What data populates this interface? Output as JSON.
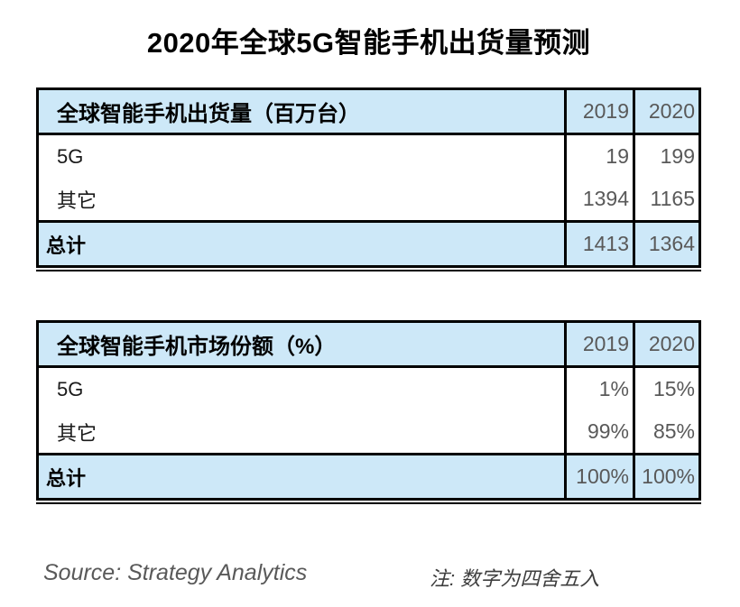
{
  "page": {
    "title": "2020年全球5G智能手机出货量预测",
    "source_text": "Source: Strategy Analytics",
    "note_text": "注: 数字为四舍五入"
  },
  "colors": {
    "header_band_blue": "#cde8f8",
    "table_border": "#000000",
    "numeral_gray": "#595959",
    "label_black": "#000000"
  },
  "chart_data": [
    {
      "type": "table",
      "title": "全球智能手机出货量（百万台）",
      "columns": [
        "2019",
        "2020"
      ],
      "rows": [
        {
          "label": "5G",
          "values": [
            "19",
            "199"
          ]
        },
        {
          "label": "其它",
          "values": [
            "1394",
            "1165"
          ]
        }
      ],
      "total": {
        "label": "总计",
        "values": [
          "1413",
          "1364"
        ]
      },
      "layout_hints": {
        "total_row_highlight": true,
        "bottom_rule": "double"
      }
    },
    {
      "type": "table",
      "title": "全球智能手机市场份额（%）",
      "columns": [
        "2019",
        "2020"
      ],
      "rows": [
        {
          "label": "5G",
          "values": [
            "1%",
            "15%"
          ]
        },
        {
          "label": "其它",
          "values": [
            "99%",
            "85%"
          ]
        }
      ],
      "total": {
        "label": "总计",
        "values": [
          "100%",
          "100%"
        ]
      },
      "layout_hints": {
        "total_row_highlight": true,
        "bottom_rule": "double"
      }
    }
  ]
}
